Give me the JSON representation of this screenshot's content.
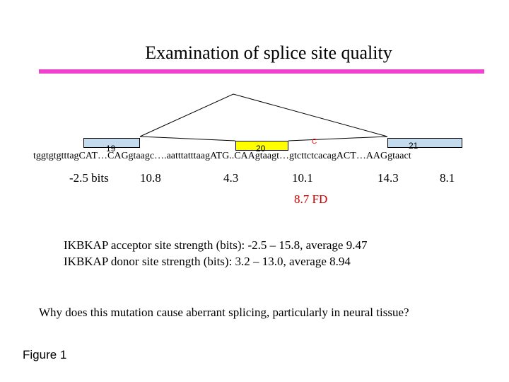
{
  "title": "Examination of splice site quality",
  "colors": {
    "rule": "#ee44cc",
    "exon_outer": "#c4dbed",
    "exon_mid": "#ffff00",
    "mutation": "#ff0000",
    "fd": "#cc0000"
  },
  "exons": [
    {
      "label": "19"
    },
    {
      "label": "20"
    },
    {
      "label": "21"
    }
  ],
  "mutation_marker": "C",
  "sequence": "tggtgtgtttagCAT…CAGgtaagc….aatttatttaagATG..CAAgtaagt…gtcttctcacagACT…AAGgtaact",
  "scores": [
    "-2.5 bits",
    "10.8",
    "4.3",
    "10.1",
    "14.3",
    "8.1"
  ],
  "fd_score": "8.7 FD",
  "acceptor_strength": "IKBKAP acceptor site strength (bits): -2.5 – 15.8, average 9.47",
  "donor_strength": "IKBKAP donor site strength (bits): 3.2 – 13.0, average 8.94",
  "question": "Why does this mutation cause aberrant splicing, particularly in neural tissue?",
  "figure_label": "Figure 1"
}
